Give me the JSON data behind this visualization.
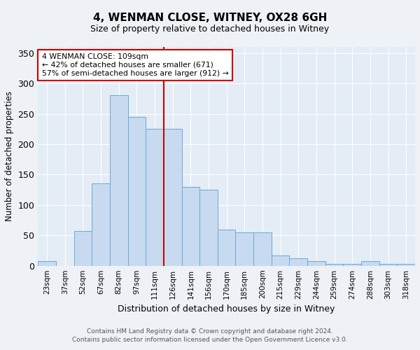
{
  "title": "4, WENMAN CLOSE, WITNEY, OX28 6GH",
  "subtitle": "Size of property relative to detached houses in Witney",
  "xlabel": "Distribution of detached houses by size in Witney",
  "ylabel": "Number of detached properties",
  "categories": [
    "23sqm",
    "37sqm",
    "52sqm",
    "67sqm",
    "82sqm",
    "97sqm",
    "111sqm",
    "126sqm",
    "141sqm",
    "156sqm",
    "170sqm",
    "185sqm",
    "200sqm",
    "215sqm",
    "229sqm",
    "244sqm",
    "259sqm",
    "274sqm",
    "288sqm",
    "303sqm",
    "318sqm"
  ],
  "values": [
    8,
    0,
    57,
    135,
    280,
    245,
    225,
    225,
    130,
    125,
    60,
    55,
    55,
    17,
    12,
    8,
    3,
    3,
    8,
    3,
    3
  ],
  "bar_color": "#c8daf0",
  "bar_edge_color": "#6aaad4",
  "marker_index": 6,
  "marker_label": "4 WENMAN CLOSE: 109sqm",
  "annotation_line1": "← 42% of detached houses are smaller (671)",
  "annotation_line2": "57% of semi-detached houses are larger (912) →",
  "marker_color": "#cc0000",
  "ylim": [
    0,
    360
  ],
  "yticks": [
    0,
    50,
    100,
    150,
    200,
    250,
    300,
    350
  ],
  "footer1": "Contains HM Land Registry data © Crown copyright and database right 2024.",
  "footer2": "Contains public sector information licensed under the Open Government Licence v3.0.",
  "bg_color": "#eef2f7",
  "plot_bg_color": "#e4ecf5"
}
